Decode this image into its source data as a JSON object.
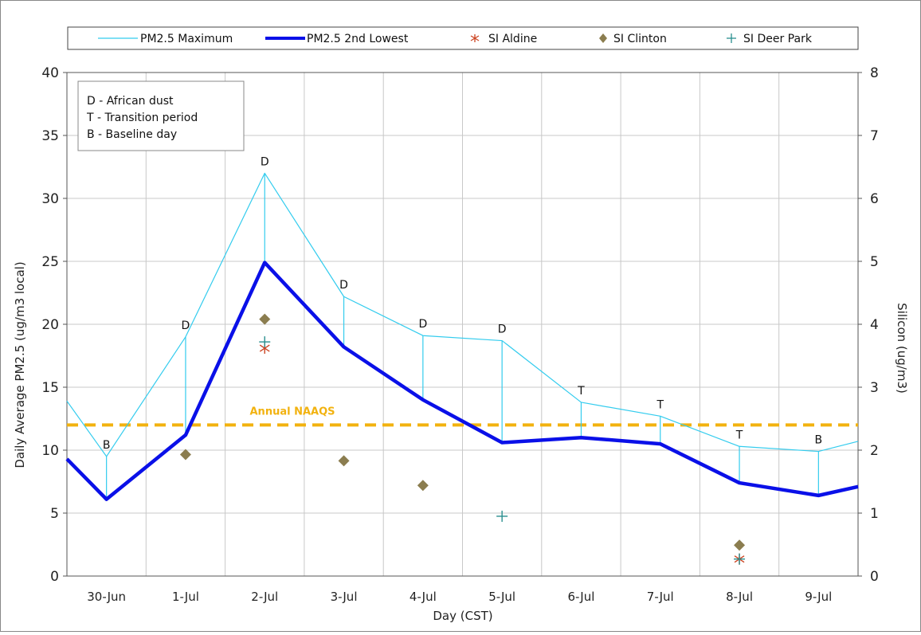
{
  "chart_data": {
    "type": "line",
    "xlabel": "Day (CST)",
    "ylabel": "Daily Average PM2.5 (ug/m3 local)",
    "y2label": "Silicon (ug/m3)",
    "categories": [
      "30-Jun",
      "1-Jul",
      "2-Jul",
      "3-Jul",
      "4-Jul",
      "5-Jul",
      "6-Jul",
      "7-Jul",
      "8-Jul",
      "9-Jul"
    ],
    "x_range": [
      -0.5,
      9.5
    ],
    "ylim": [
      0,
      40
    ],
    "y_ticks": [
      0,
      5,
      10,
      15,
      20,
      25,
      30,
      35,
      40
    ],
    "y2lim": [
      0,
      8
    ],
    "y2_ticks": [
      0,
      1,
      2,
      3,
      4,
      5,
      6,
      7,
      8
    ],
    "grid": true,
    "legend_position": "top",
    "series": [
      {
        "name": "PM2.5 Maximum",
        "axis": "left",
        "color": "#33ccee",
        "style": "thin-line",
        "x": [
          -0.5,
          0,
          1,
          2,
          3,
          4,
          5,
          6,
          7,
          8,
          9,
          9.5
        ],
        "values": [
          13.9,
          9.5,
          19.0,
          32.0,
          22.2,
          19.1,
          18.7,
          13.8,
          12.7,
          10.3,
          9.9,
          10.7
        ]
      },
      {
        "name": "PM2.5 2nd Lowest",
        "axis": "left",
        "color": "#0a10e8",
        "style": "thick-line",
        "x": [
          -0.5,
          0,
          1,
          2,
          3,
          4,
          5,
          6,
          7,
          8,
          9,
          9.5
        ],
        "values": [
          9.3,
          6.1,
          11.2,
          24.9,
          18.2,
          14.0,
          10.6,
          11.0,
          10.5,
          7.4,
          6.4,
          7.1
        ]
      },
      {
        "name": "SI Aldine",
        "axis": "right",
        "color": "#cc4422",
        "marker": "asterisk",
        "x": [
          2,
          8
        ],
        "values": [
          3.62,
          0.27
        ]
      },
      {
        "name": "SI Clinton",
        "axis": "right",
        "color": "#8b7d4f",
        "marker": "diamond",
        "x": [
          1,
          2,
          3,
          4,
          8
        ],
        "values": [
          1.93,
          4.08,
          1.83,
          1.44,
          0.49
        ]
      },
      {
        "name": "SI Deer Park",
        "axis": "right",
        "color": "#2a8f8f",
        "marker": "plus",
        "x": [
          2,
          5,
          8
        ],
        "values": [
          3.72,
          0.95,
          0.27
        ]
      }
    ],
    "reference_line": {
      "label": "Annual NAAQS",
      "value": 12,
      "axis": "left",
      "color": "#f2b20f"
    },
    "day_labels": [
      {
        "x": 0,
        "label": "B"
      },
      {
        "x": 1,
        "label": "D"
      },
      {
        "x": 2,
        "label": "D"
      },
      {
        "x": 3,
        "label": "D"
      },
      {
        "x": 4,
        "label": "D"
      },
      {
        "x": 5,
        "label": "D"
      },
      {
        "x": 6,
        "label": "T"
      },
      {
        "x": 7,
        "label": "T"
      },
      {
        "x": 8,
        "label": "T"
      },
      {
        "x": 9,
        "label": "B"
      }
    ],
    "annotation_box": [
      "D - African dust",
      "T - Transition period",
      "B - Baseline day"
    ]
  }
}
